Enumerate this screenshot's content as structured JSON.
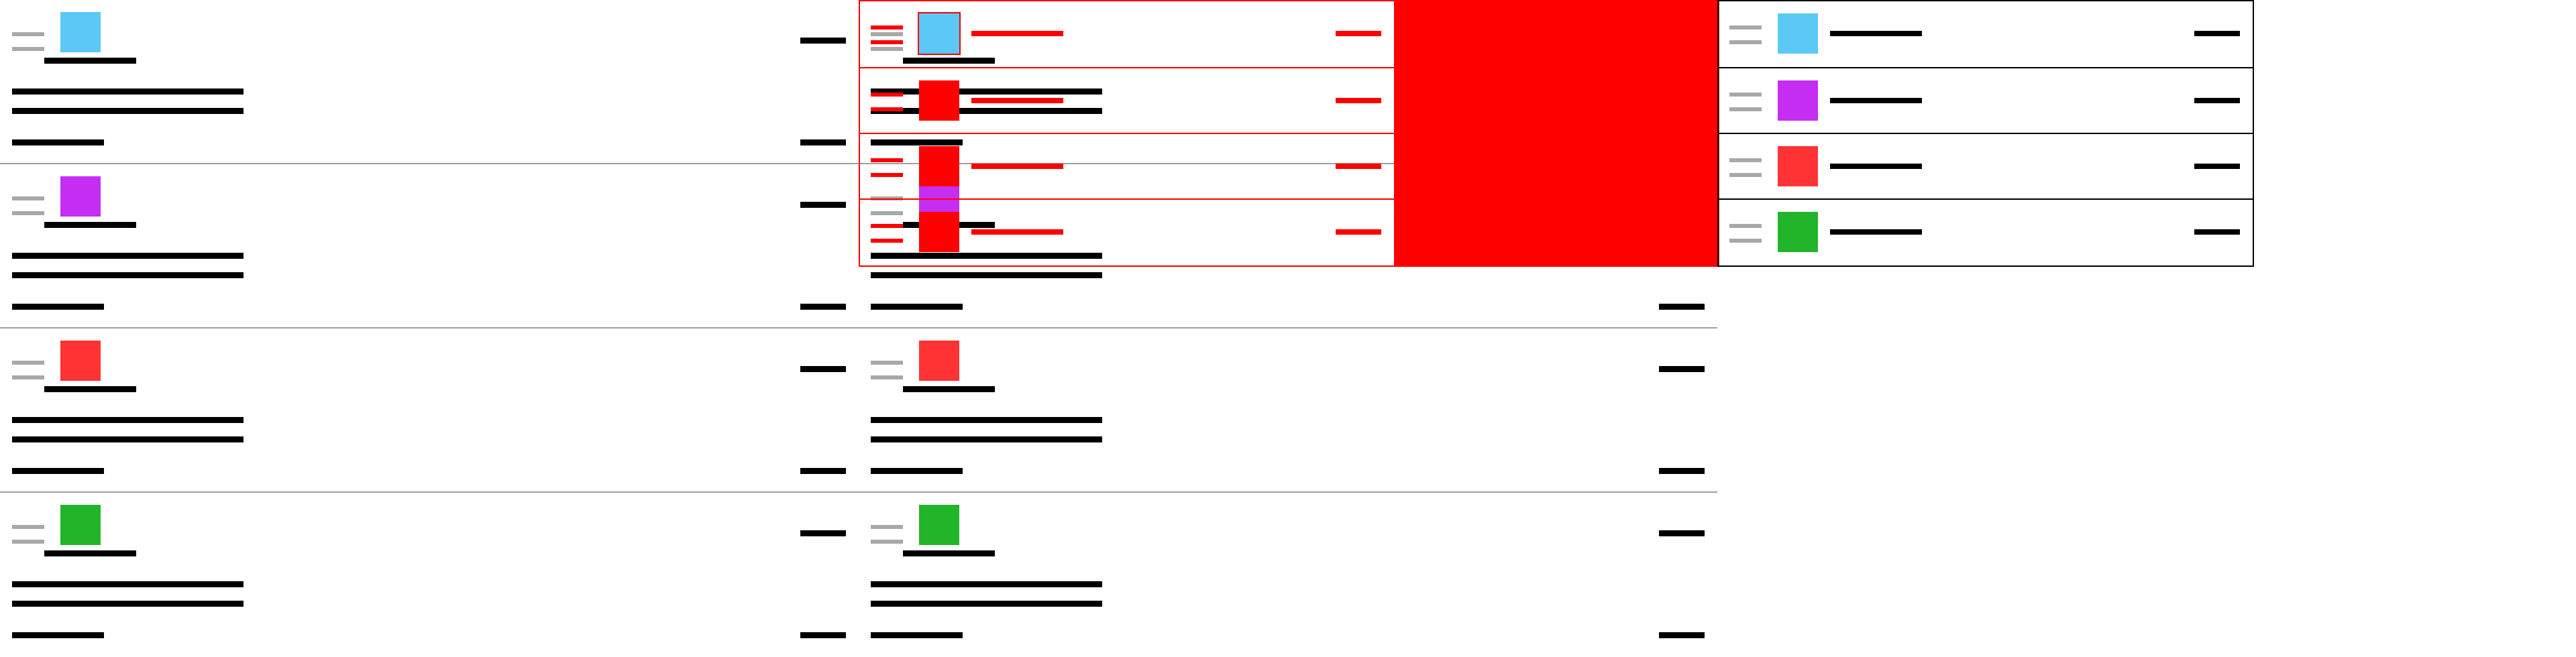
{
  "theme": {
    "ink": "#000000",
    "grip": "#a8a8a8",
    "divider": "#a0a0a0",
    "red": "#ff0000"
  },
  "rows": [
    {
      "key": "cyan",
      "color": "#5bc8f5",
      "icon": "drag-handle-icon"
    },
    {
      "key": "purple",
      "color": "#c52df3",
      "icon": "drag-handle-icon"
    },
    {
      "key": "red",
      "color": "#ff3333",
      "icon": "drag-handle-icon"
    },
    {
      "key": "green",
      "color": "#22b52a",
      "icon": "drag-handle-icon"
    }
  ]
}
